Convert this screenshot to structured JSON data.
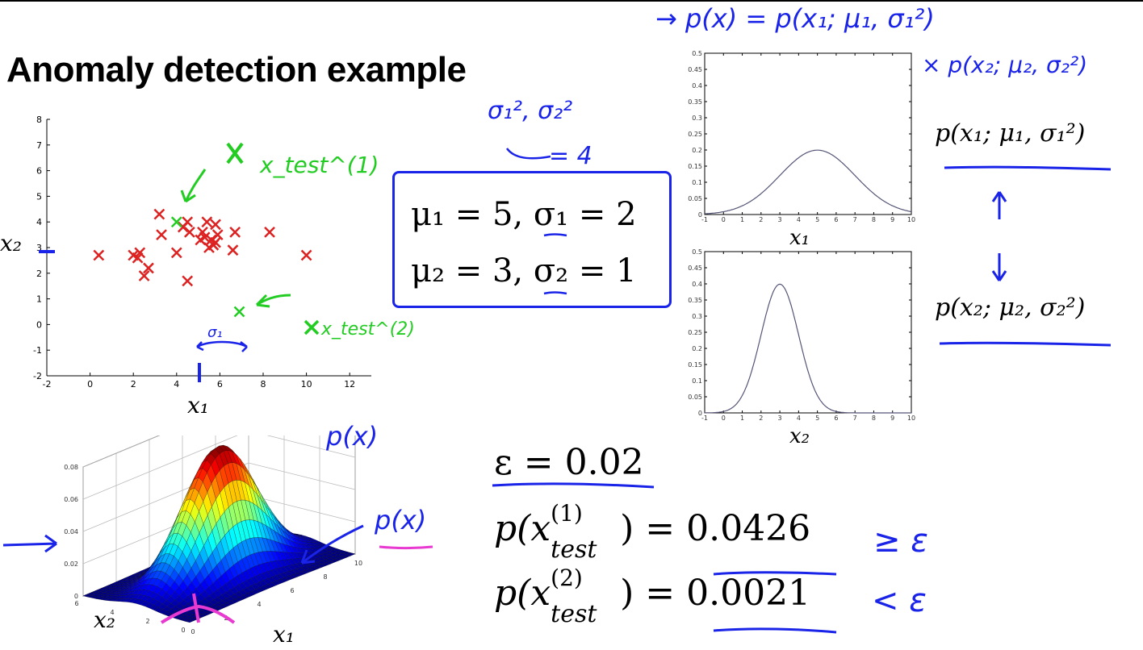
{
  "slide": {
    "title": "Anomaly detection example"
  },
  "params": {
    "line1": "μ₁ = 5, σ₁ = 2",
    "line2": "μ₂ = 3, σ₂ = 1",
    "note_sigma": "σ₁², σ₂²",
    "note_eq": "= 4"
  },
  "handwriting": {
    "px_formula": "→ p(x) = p(x₁; μ₁, σ₁²)",
    "px_formula_cont": "× p(x₂; μ₂, σ₂²)",
    "test1_label": "x_test^(1)",
    "test2_label": "x_test^(2)",
    "sigma1_arrow": "σ₁",
    "px_3d_1": "p(x)",
    "px_3d_2": "p(x)",
    "cmp1": "≥ ε",
    "cmp2": "< ε",
    "up_arrow": "↑",
    "down_arrow": "↓"
  },
  "labels": {
    "p1": "p(x₁; μ₁, σ₁²)",
    "p2": "p(x₂; μ₂, σ₂²)",
    "x1_top": "x₁",
    "x2_top": "x₂"
  },
  "results": {
    "epsilon": "ε = 0.02",
    "test1_lhs": "p(x",
    "test1_sup": "(1)",
    "test1_sub": "test",
    "test1_val": "0.0426",
    "test2_lhs": "p(x",
    "test2_sup": "(2)",
    "test2_sub": "test",
    "test2_val": "0.0021",
    "rhs_close": ") = "
  },
  "chart_data": [
    {
      "type": "scatter",
      "xlabel": "x₁",
      "ylabel": "x₂",
      "xlim": [
        -2,
        13
      ],
      "ylim": [
        -2,
        8
      ],
      "xticks": [
        -2,
        0,
        2,
        4,
        6,
        8,
        10,
        12
      ],
      "yticks": [
        -2,
        -1,
        0,
        1,
        2,
        3,
        4,
        5,
        6,
        7,
        8
      ],
      "series": [
        {
          "color": "#dd2222",
          "marker": "x",
          "x": [
            0.4,
            2.0,
            2.2,
            2.3,
            2.5,
            2.7,
            3.2,
            3.3,
            4.0,
            4.3,
            4.5,
            4.5,
            4.6,
            5.1,
            5.2,
            5.3,
            5.4,
            5.5,
            5.6,
            5.7,
            5.8,
            5.8,
            5.9,
            6.6,
            6.7,
            8.3,
            10.0
          ],
          "y": [
            2.7,
            2.7,
            2.6,
            2.8,
            1.9,
            2.2,
            4.3,
            3.5,
            2.8,
            3.8,
            4.0,
            1.7,
            3.6,
            3.3,
            3.6,
            3.4,
            4.0,
            3.0,
            3.3,
            3.1,
            3.9,
            3.2,
            3.5,
            2.9,
            3.6,
            3.6,
            2.7
          ]
        },
        {
          "color": "#22cc22",
          "marker": "x",
          "x": [
            4.0,
            6.9
          ],
          "y": [
            4.0,
            0.5
          ]
        }
      ]
    },
    {
      "type": "line",
      "xlabel": "x₁",
      "xlim": [
        -1,
        10
      ],
      "ylim": [
        0,
        0.5
      ],
      "xticks": [
        -1,
        0,
        1,
        2,
        3,
        4,
        5,
        6,
        7,
        8,
        9,
        10
      ],
      "yticks": [
        0,
        0.05,
        0.1,
        0.15,
        0.2,
        0.25,
        0.3,
        0.35,
        0.4,
        0.45,
        0.5
      ],
      "gaussian": {
        "mean": 5,
        "sd": 2
      },
      "peak": 0.2,
      "color": "#555577"
    },
    {
      "type": "line",
      "xlabel": "x₂",
      "xlim": [
        -1,
        10
      ],
      "ylim": [
        0,
        0.5
      ],
      "xticks": [
        -1,
        0,
        1,
        2,
        3,
        4,
        5,
        6,
        7,
        8,
        9,
        10
      ],
      "yticks": [
        0,
        0.05,
        0.1,
        0.15,
        0.2,
        0.25,
        0.3,
        0.35,
        0.4,
        0.45,
        0.5
      ],
      "gaussian": {
        "mean": 3,
        "sd": 1
      },
      "peak": 0.4,
      "color": "#555577"
    },
    {
      "type": "surface",
      "xlabel": "x₁",
      "ylabel": "x₂",
      "zticks": [
        0,
        0.02,
        0.04,
        0.06,
        0.08
      ],
      "x1ticks": [
        0,
        2,
        4,
        6,
        8,
        10
      ],
      "x2ticks": [
        0,
        2,
        4,
        6
      ],
      "peak": 0.08
    }
  ]
}
